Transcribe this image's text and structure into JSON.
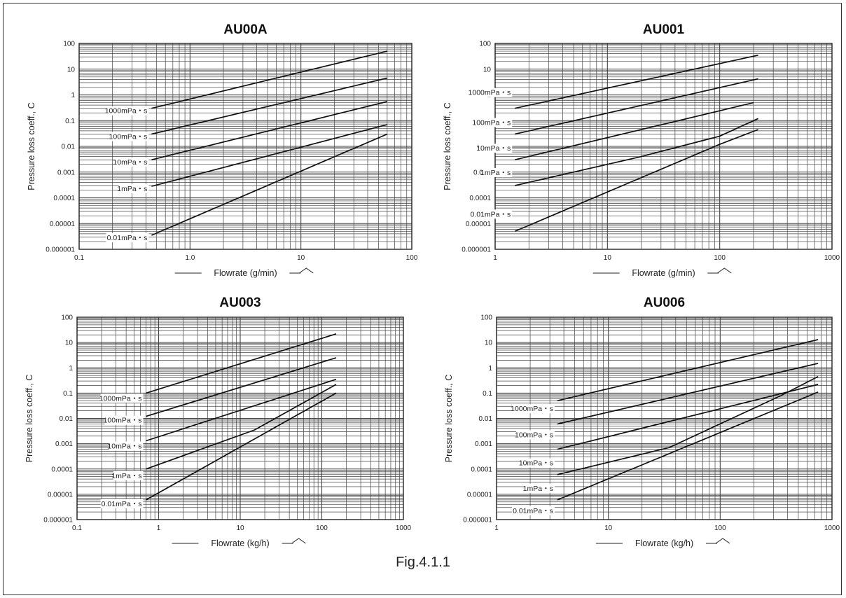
{
  "figure_caption": "Fig.4.1.1",
  "arrow_icon": "flow-direction-arrow-icon",
  "chart_data": [
    {
      "type": "line",
      "title": "AU00A",
      "xlabel": "Flowrate (g/min)",
      "ylabel": "Pressure loss coeff., C",
      "xscale": "log",
      "yscale": "log",
      "xlim": [
        0.1,
        100
      ],
      "ylim": [
        1e-06,
        100
      ],
      "xticks": [
        "0.1",
        "1.0",
        "10",
        "100"
      ],
      "yticks": [
        "100",
        "10",
        "1",
        "0.1",
        "0.01",
        "0.001",
        "0.0001",
        "0.00001",
        "0.000001"
      ],
      "grid": true,
      "series": [
        {
          "name": "1000mPa・s",
          "points": [
            [
              0.45,
              0.3
            ],
            [
              60,
              50
            ]
          ]
        },
        {
          "name": "100mPa・s",
          "points": [
            [
              0.45,
              0.03
            ],
            [
              60,
              4.5
            ]
          ]
        },
        {
          "name": "10mPa・s",
          "points": [
            [
              0.45,
              0.003
            ],
            [
              60,
              0.55
            ]
          ]
        },
        {
          "name": "1mPa・s",
          "points": [
            [
              0.45,
              0.00028
            ],
            [
              60,
              0.07
            ]
          ]
        },
        {
          "name": "0.01mPa・s",
          "points": [
            [
              0.45,
              3.5e-06
            ],
            [
              60,
              0.03
            ]
          ]
        }
      ]
    },
    {
      "type": "line",
      "title": "AU001",
      "xlabel": "Flowrate (g/min)",
      "ylabel": "Pressure loss coeff., C",
      "xscale": "log",
      "yscale": "log",
      "xlim": [
        1,
        1000
      ],
      "ylim": [
        1e-06,
        100
      ],
      "xticks": [
        "1",
        "10",
        "100",
        "1000"
      ],
      "yticks": [
        "100",
        "10",
        "1",
        "0.1",
        "0.01",
        "0.001",
        "0.0001",
        "0.00001",
        "0.000001"
      ],
      "grid": true,
      "series": [
        {
          "name": "1000mPa・s",
          "points": [
            [
              1.5,
              0.3
            ],
            [
              220,
              35
            ]
          ]
        },
        {
          "name": "100mPa・s",
          "points": [
            [
              1.5,
              0.03
            ],
            [
              220,
              4.2
            ]
          ]
        },
        {
          "name": "10mPa・s",
          "points": [
            [
              1.5,
              0.003
            ],
            [
              200,
              0.5
            ]
          ]
        },
        {
          "name": "1mPa・s",
          "points": [
            [
              1.5,
              0.0003
            ],
            [
              20,
              0.004
            ],
            [
              100,
              0.025
            ],
            [
              220,
              0.12
            ]
          ]
        },
        {
          "name": "0.01mPa・s",
          "points": [
            [
              1.5,
              5e-06
            ],
            [
              100,
              0.012
            ],
            [
              220,
              0.045
            ]
          ]
        }
      ]
    },
    {
      "type": "line",
      "title": "AU003",
      "xlabel": "Flowrate (kg/h)",
      "ylabel": "Pressure loss coeff., C",
      "xscale": "log",
      "yscale": "log",
      "xlim": [
        0.1,
        1000
      ],
      "ylim": [
        1e-06,
        100
      ],
      "xticks": [
        "0.1",
        "1",
        "10",
        "100",
        "1000"
      ],
      "yticks": [
        "100",
        "10",
        "1",
        "0.1",
        "0.01",
        "0.001",
        "0.0001",
        "0.00001",
        "0.000001"
      ],
      "grid": true,
      "series": [
        {
          "name": "1000mPa・s",
          "points": [
            [
              0.7,
              0.1
            ],
            [
              150,
              22
            ]
          ]
        },
        {
          "name": "100mPa・s",
          "points": [
            [
              0.7,
              0.012
            ],
            [
              150,
              2.5
            ]
          ]
        },
        {
          "name": "10mPa・s",
          "points": [
            [
              0.7,
              0.0013
            ],
            [
              150,
              0.35
            ]
          ]
        },
        {
          "name": "1mPa・s",
          "points": [
            [
              0.7,
              0.0001
            ],
            [
              15,
              0.0035
            ],
            [
              150,
              0.22
            ]
          ]
        },
        {
          "name": "0.01mPa・s",
          "points": [
            [
              0.7,
              6e-06
            ],
            [
              150,
              0.1
            ]
          ]
        }
      ]
    },
    {
      "type": "line",
      "title": "AU006",
      "xlabel": "Flowrate (kg/h)",
      "ylabel": "Pressure loss coeff., C",
      "xscale": "log",
      "yscale": "log",
      "xlim": [
        1,
        1000
      ],
      "ylim": [
        1e-06,
        100
      ],
      "xticks": [
        "1",
        "10",
        "100",
        "1000"
      ],
      "yticks": [
        "100",
        "10",
        "1",
        "0.1",
        "0.01",
        "0.001",
        "0.0001",
        "0.00001",
        "0.000001"
      ],
      "grid": true,
      "series": [
        {
          "name": "1000mPa・s",
          "points": [
            [
              3.5,
              0.05
            ],
            [
              750,
              13
            ]
          ]
        },
        {
          "name": "100mPa・s",
          "points": [
            [
              3.5,
              0.006
            ],
            [
              750,
              1.5
            ]
          ]
        },
        {
          "name": "10mPa・s",
          "points": [
            [
              3.5,
              0.0006
            ],
            [
              750,
              0.22
            ]
          ]
        },
        {
          "name": "1mPa・s",
          "points": [
            [
              3.5,
              6e-05
            ],
            [
              35,
              0.0007
            ],
            [
              350,
              0.08
            ],
            [
              750,
              0.45
            ]
          ]
        },
        {
          "name": "0.01mPa・s",
          "points": [
            [
              3.5,
              6e-06
            ],
            [
              750,
              0.11
            ]
          ]
        }
      ]
    }
  ]
}
